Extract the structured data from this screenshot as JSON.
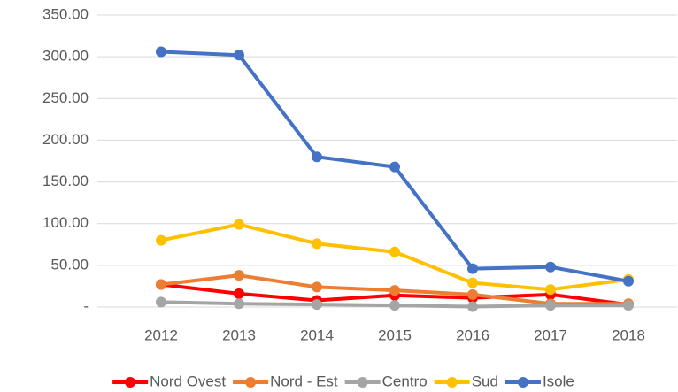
{
  "chart_data": {
    "type": "line",
    "categories": [
      "2012",
      "2013",
      "2014",
      "2015",
      "2016",
      "2017",
      "2018"
    ],
    "series": [
      {
        "name": "Nord Ovest",
        "color": "#ff0000",
        "values": [
          27,
          16,
          8,
          14,
          11,
          15,
          3
        ]
      },
      {
        "name": "Nord - Est",
        "color": "#ed7d31",
        "values": [
          27,
          38,
          24,
          20,
          15,
          4,
          4
        ]
      },
      {
        "name": "Centro",
        "color": "#a5a5a5",
        "values": [
          6,
          4,
          3,
          2,
          0.5,
          2,
          2
        ]
      },
      {
        "name": "Sud",
        "color": "#ffc000",
        "values": [
          80,
          99,
          76,
          66,
          29,
          21,
          33
        ]
      },
      {
        "name": "Isole",
        "color": "#4472c4",
        "values": [
          306,
          302,
          180,
          168,
          46,
          48,
          31
        ]
      }
    ],
    "ylim": [
      0,
      350
    ],
    "yticks": [
      {
        "value": 0,
        "label": "-"
      },
      {
        "value": 50,
        "label": "50.00"
      },
      {
        "value": 100,
        "label": "100.00"
      },
      {
        "value": 150,
        "label": "150.00"
      },
      {
        "value": 200,
        "label": "200.00"
      },
      {
        "value": 250,
        "label": "250.00"
      },
      {
        "value": 300,
        "label": "300.00"
      },
      {
        "value": 350,
        "label": "350.00"
      }
    ],
    "grid": true,
    "legend": "bottom"
  }
}
